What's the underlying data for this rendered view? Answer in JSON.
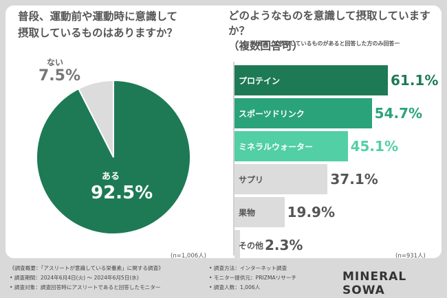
{
  "left": {
    "title_line1": "普段、運動前や運動時に意識して",
    "title_line2": "摂取しているものはありますか？",
    "sample": "(n=1,006人)"
  },
  "right": {
    "title_line1": "どのようなものを意識して摂取していますか？",
    "title_line2": "（複数回答可）",
    "note": "ー意識して摂取しているものがあると回答した方のみ回答ー",
    "sample": "(n=931人)"
  },
  "chart_data": [
    {
      "type": "pie",
      "categories": [
        "ある",
        "ない"
      ],
      "values": [
        92.5,
        7.5
      ],
      "value_labels": [
        "92.5%",
        "7.5%"
      ],
      "colors": [
        "#1d7a55",
        "#dcdcdc"
      ]
    },
    {
      "type": "bar",
      "orientation": "horizontal",
      "categories": [
        "プロテイン",
        "スポーツドリンク",
        "ミネラルウォーター",
        "サプリ",
        "果物",
        "その他"
      ],
      "values": [
        61.1,
        54.7,
        45.1,
        37.1,
        19.9,
        2.3
      ],
      "value_labels": [
        "61.1%",
        "54.7%",
        "45.1%",
        "37.1%",
        "19.9%",
        "2.3%"
      ],
      "bar_colors": [
        "#1d7a55",
        "#2aa37a",
        "#52cfa4",
        "#dcdcdc",
        "#dcdcdc",
        "#dcdcdc"
      ],
      "label_colors": [
        "#1d7a55",
        "#2aa37a",
        "#52cfa4",
        "#555555",
        "#555555",
        "#555555"
      ]
    }
  ],
  "footer": {
    "left": [
      "《調査概要：「アスリートが意識している栄養素」に関する調査》",
      "• 調査期間：2024年6月4日(火) ～ 2024年6月5日(水)",
      "• 調査対象：調査回答時にアスリートであると回答したモニター"
    ],
    "right": [
      "• 調査方法：インターネット調査",
      "• モニター提供元：PRIZMAリサーチ",
      "• 調査人数：1,006人"
    ],
    "brand": "MINERAL SOWA"
  }
}
